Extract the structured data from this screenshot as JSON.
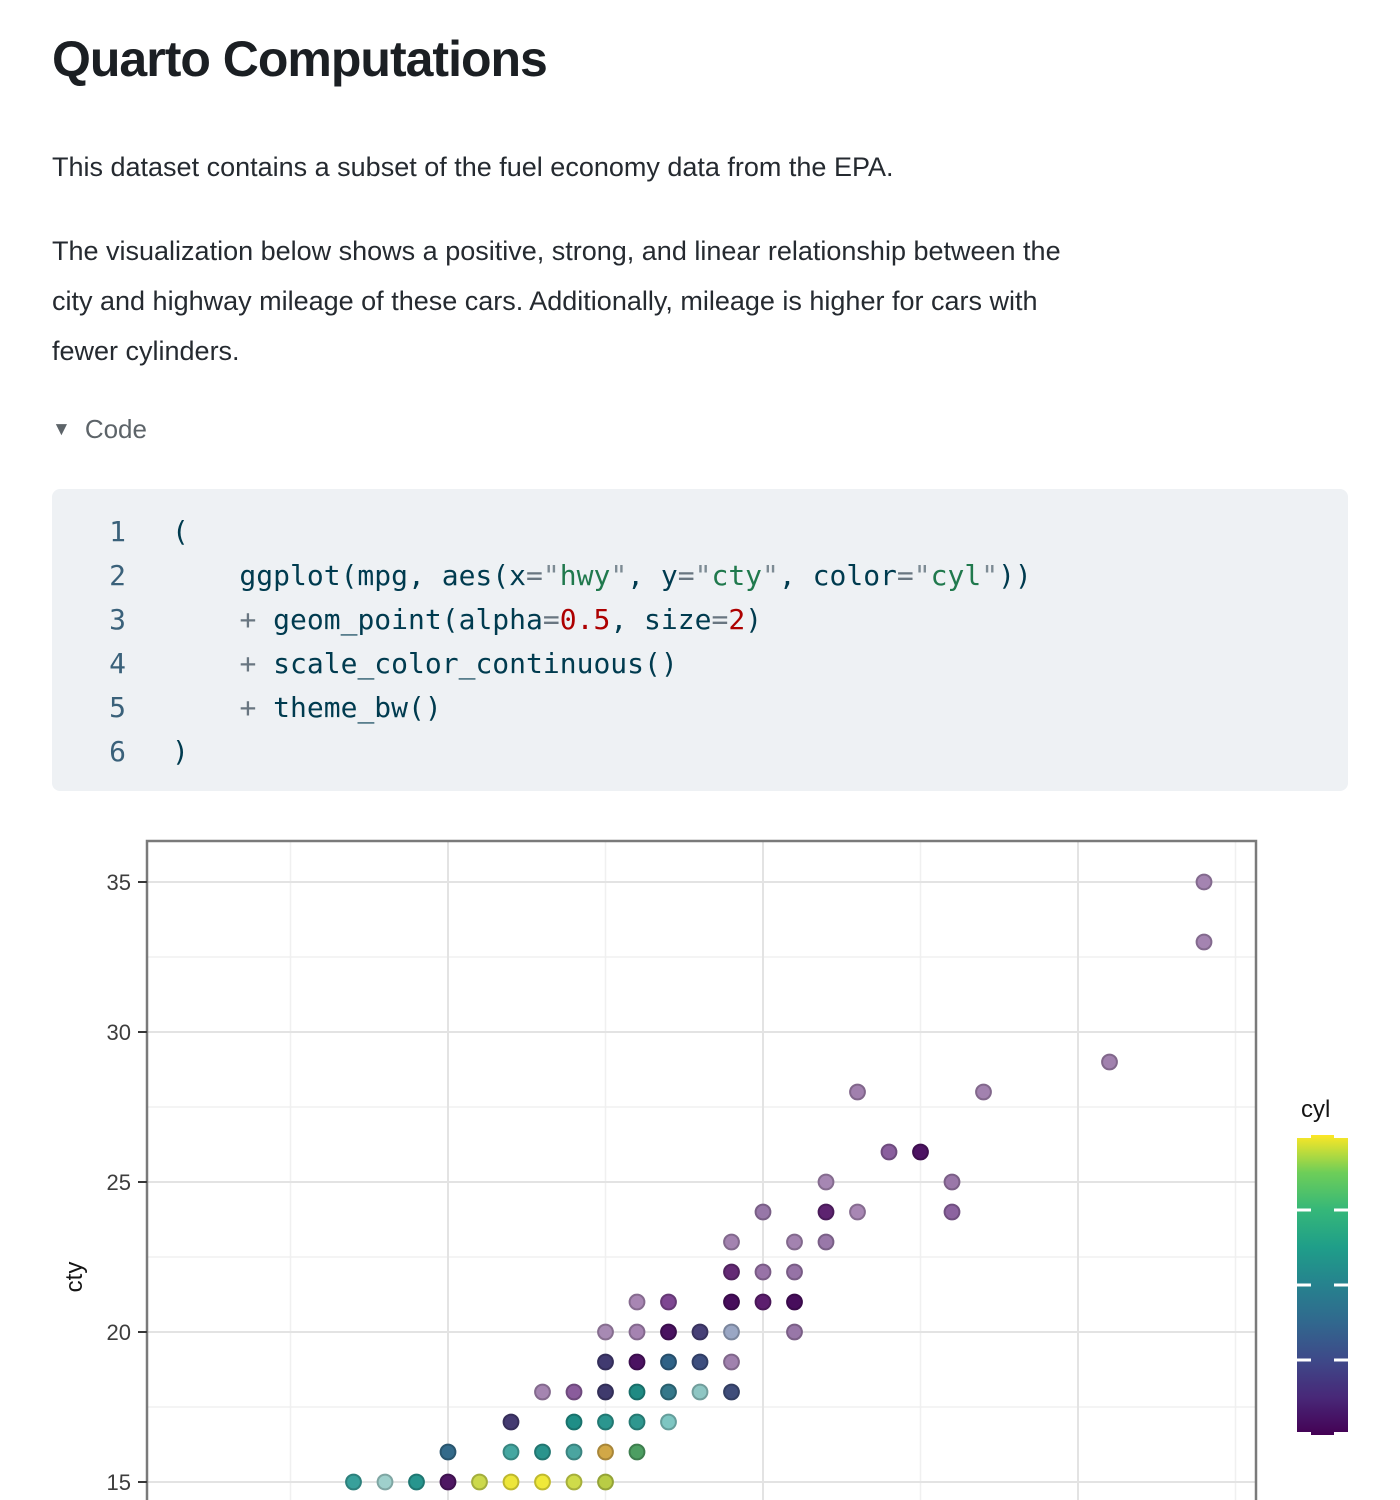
{
  "page": {
    "title": "Quarto Computations",
    "paragraph1": "This dataset contains a subset of the fuel economy data from the EPA.",
    "paragraph2": "The visualization below shows a positive, strong, and linear relationship between the\ncity and highway mileage of these cars. Additionally, mileage is higher for cars with\nfewer cylinders.",
    "code_fold": {
      "icon": "▼",
      "label": "Code"
    }
  },
  "code_block": {
    "colors": {
      "tx": "#003B4F",
      "op": "#697681",
      "qu": "#7d8b94",
      "st": "#20794D",
      "nu": "#AD0000",
      "gutter": "#3a617a",
      "bg": "#eef1f4"
    },
    "lines": [
      {
        "num": "1",
        "segments": [
          {
            "t": "(",
            "c": "tx"
          }
        ]
      },
      {
        "num": "2",
        "segments": [
          {
            "t": "    ggplot(mpg, aes(x",
            "c": "tx"
          },
          {
            "t": "=",
            "c": "op"
          },
          {
            "t": "\"",
            "c": "qu"
          },
          {
            "t": "hwy",
            "c": "st"
          },
          {
            "t": "\"",
            "c": "qu"
          },
          {
            "t": ", y",
            "c": "tx"
          },
          {
            "t": "=",
            "c": "op"
          },
          {
            "t": "\"",
            "c": "qu"
          },
          {
            "t": "cty",
            "c": "st"
          },
          {
            "t": "\"",
            "c": "qu"
          },
          {
            "t": ", color",
            "c": "tx"
          },
          {
            "t": "=",
            "c": "op"
          },
          {
            "t": "\"",
            "c": "qu"
          },
          {
            "t": "cyl",
            "c": "st"
          },
          {
            "t": "\"",
            "c": "qu"
          },
          {
            "t": "))",
            "c": "tx"
          }
        ]
      },
      {
        "num": "3",
        "segments": [
          {
            "t": "    ",
            "c": "tx"
          },
          {
            "t": "+",
            "c": "op"
          },
          {
            "t": " geom_point(alpha",
            "c": "tx"
          },
          {
            "t": "=",
            "c": "op"
          },
          {
            "t": "0.5",
            "c": "nu"
          },
          {
            "t": ", size",
            "c": "tx"
          },
          {
            "t": "=",
            "c": "op"
          },
          {
            "t": "2",
            "c": "nu"
          },
          {
            "t": ")",
            "c": "tx"
          }
        ]
      },
      {
        "num": "4",
        "segments": [
          {
            "t": "    ",
            "c": "tx"
          },
          {
            "t": "+",
            "c": "op"
          },
          {
            "t": " scale_color_continuous()",
            "c": "tx"
          }
        ]
      },
      {
        "num": "5",
        "segments": [
          {
            "t": "    ",
            "c": "tx"
          },
          {
            "t": "+",
            "c": "op"
          },
          {
            "t": " theme_bw()",
            "c": "tx"
          }
        ]
      },
      {
        "num": "6",
        "segments": [
          {
            "t": ")",
            "c": "tx"
          }
        ]
      }
    ]
  },
  "chart_data": {
    "type": "scatter",
    "ylabel": "cty",
    "y_ticks": [
      15,
      20,
      25,
      30,
      35
    ],
    "y_minor_gridlines": [
      17.5,
      22.5,
      27.5,
      32.5
    ],
    "x_major_gridlines": [
      20,
      30,
      40
    ],
    "x_minor_gridlines": [
      15,
      25,
      35,
      45
    ],
    "x_range": [
      10.4,
      45.6
    ],
    "y_visible_range": [
      14.4,
      36.5
    ],
    "grid": "on",
    "theme": "bw",
    "point_alpha": 0.5,
    "legend": {
      "title": "cyl",
      "position": "right",
      "orientation": "vertical-colorbar",
      "top_to_bottom_stops": [
        "#fde725",
        "#6ece58",
        "#35b779",
        "#1f9e89",
        "#26828e",
        "#31688e",
        "#3e4989",
        "#482878",
        "#440154"
      ],
      "tick_fractions_from_top": [
        0,
        0.25,
        0.5,
        0.75,
        1
      ]
    },
    "points": [
      {
        "hwy": 17,
        "cty": 15,
        "c": "#38a09b"
      },
      {
        "hwy": 18,
        "cty": 15,
        "c": "#9fd0cc"
      },
      {
        "hwy": 19,
        "cty": 15,
        "c": "#27958e"
      },
      {
        "hwy": 20,
        "cty": 15,
        "c": "#4f1763"
      },
      {
        "hwy": 21,
        "cty": 15,
        "c": "#ccd94c"
      },
      {
        "hwy": 22,
        "cty": 15,
        "c": "#ede63a"
      },
      {
        "hwy": 23,
        "cty": 15,
        "c": "#f0e93a"
      },
      {
        "hwy": 24,
        "cty": 15,
        "c": "#cfdb4a"
      },
      {
        "hwy": 25,
        "cty": 15,
        "c": "#b9cc45"
      },
      {
        "hwy": 20,
        "cty": 16,
        "c": "#336a8a"
      },
      {
        "hwy": 22,
        "cty": 16,
        "c": "#45a7a1"
      },
      {
        "hwy": 23,
        "cty": 16,
        "c": "#2a948d"
      },
      {
        "hwy": 24,
        "cty": 16,
        "c": "#4aa5a0"
      },
      {
        "hwy": 25,
        "cty": 16,
        "c": "#d2a847"
      },
      {
        "hwy": 26,
        "cty": 16,
        "c": "#4d9e62"
      },
      {
        "hwy": 22,
        "cty": 17,
        "c": "#443a71"
      },
      {
        "hwy": 24,
        "cty": 17,
        "c": "#1f8e87"
      },
      {
        "hwy": 25,
        "cty": 17,
        "c": "#2b968f"
      },
      {
        "hwy": 26,
        "cty": 17,
        "c": "#2f978f"
      },
      {
        "hwy": 27,
        "cty": 17,
        "c": "#7ec6c2"
      },
      {
        "hwy": 23,
        "cty": 18,
        "c": "#a585b1"
      },
      {
        "hwy": 24,
        "cty": 18,
        "c": "#8a5c9c"
      },
      {
        "hwy": 25,
        "cty": 18,
        "c": "#3f3a6d"
      },
      {
        "hwy": 26,
        "cty": 18,
        "c": "#1f8a83"
      },
      {
        "hwy": 27,
        "cty": 18,
        "c": "#35788a"
      },
      {
        "hwy": 28,
        "cty": 18,
        "c": "#8ec6c3"
      },
      {
        "hwy": 29,
        "cty": 18,
        "c": "#3f4d7a"
      },
      {
        "hwy": 25,
        "cty": 19,
        "c": "#413a70"
      },
      {
        "hwy": 26,
        "cty": 19,
        "c": "#4b1261"
      },
      {
        "hwy": 27,
        "cty": 19,
        "c": "#2f6286"
      },
      {
        "hwy": 28,
        "cty": 19,
        "c": "#3d4e7e"
      },
      {
        "hwy": 29,
        "cty": 19,
        "c": "#a081ae"
      },
      {
        "hwy": 25,
        "cty": 20,
        "c": "#a78ab3"
      },
      {
        "hwy": 26,
        "cty": 20,
        "c": "#a583b1"
      },
      {
        "hwy": 27,
        "cty": 20,
        "c": "#4a1260"
      },
      {
        "hwy": 28,
        "cty": 20,
        "c": "#474077"
      },
      {
        "hwy": 29,
        "cty": 20,
        "c": "#9aa7c4"
      },
      {
        "hwy": 31,
        "cty": 20,
        "c": "#9877a8"
      },
      {
        "hwy": 26,
        "cty": 21,
        "c": "#a886b3"
      },
      {
        "hwy": 27,
        "cty": 21,
        "c": "#7e4792"
      },
      {
        "hwy": 29,
        "cty": 21,
        "c": "#470d5c"
      },
      {
        "hwy": 30,
        "cty": 21,
        "c": "#5c1e6e"
      },
      {
        "hwy": 31,
        "cty": 21,
        "c": "#470d5c"
      },
      {
        "hwy": 29,
        "cty": 22,
        "c": "#642a75"
      },
      {
        "hwy": 30,
        "cty": 22,
        "c": "#9873a7"
      },
      {
        "hwy": 31,
        "cty": 22,
        "c": "#9673a6"
      },
      {
        "hwy": 29,
        "cty": 23,
        "c": "#a383b0"
      },
      {
        "hwy": 31,
        "cty": 23,
        "c": "#a383b0"
      },
      {
        "hwy": 32,
        "cty": 23,
        "c": "#9978a9"
      },
      {
        "hwy": 30,
        "cty": 24,
        "c": "#9777a8"
      },
      {
        "hwy": 32,
        "cty": 24,
        "c": "#5d2370"
      },
      {
        "hwy": 33,
        "cty": 24,
        "c": "#a887b4"
      },
      {
        "hwy": 36,
        "cty": 24,
        "c": "#8c63a0"
      },
      {
        "hwy": 32,
        "cty": 25,
        "c": "#a687b3"
      },
      {
        "hwy": 36,
        "cty": 25,
        "c": "#9a77a9"
      },
      {
        "hwy": 34,
        "cty": 26,
        "c": "#8a5f9e"
      },
      {
        "hwy": 35,
        "cty": 26,
        "c": "#4d1363"
      },
      {
        "hwy": 33,
        "cty": 28,
        "c": "#a180ae"
      },
      {
        "hwy": 37,
        "cty": 28,
        "c": "#a282af"
      },
      {
        "hwy": 41,
        "cty": 29,
        "c": "#a181ae"
      },
      {
        "hwy": 44,
        "cty": 33,
        "c": "#a484b1"
      },
      {
        "hwy": 44,
        "cty": 35,
        "c": "#a484b1"
      }
    ]
  }
}
